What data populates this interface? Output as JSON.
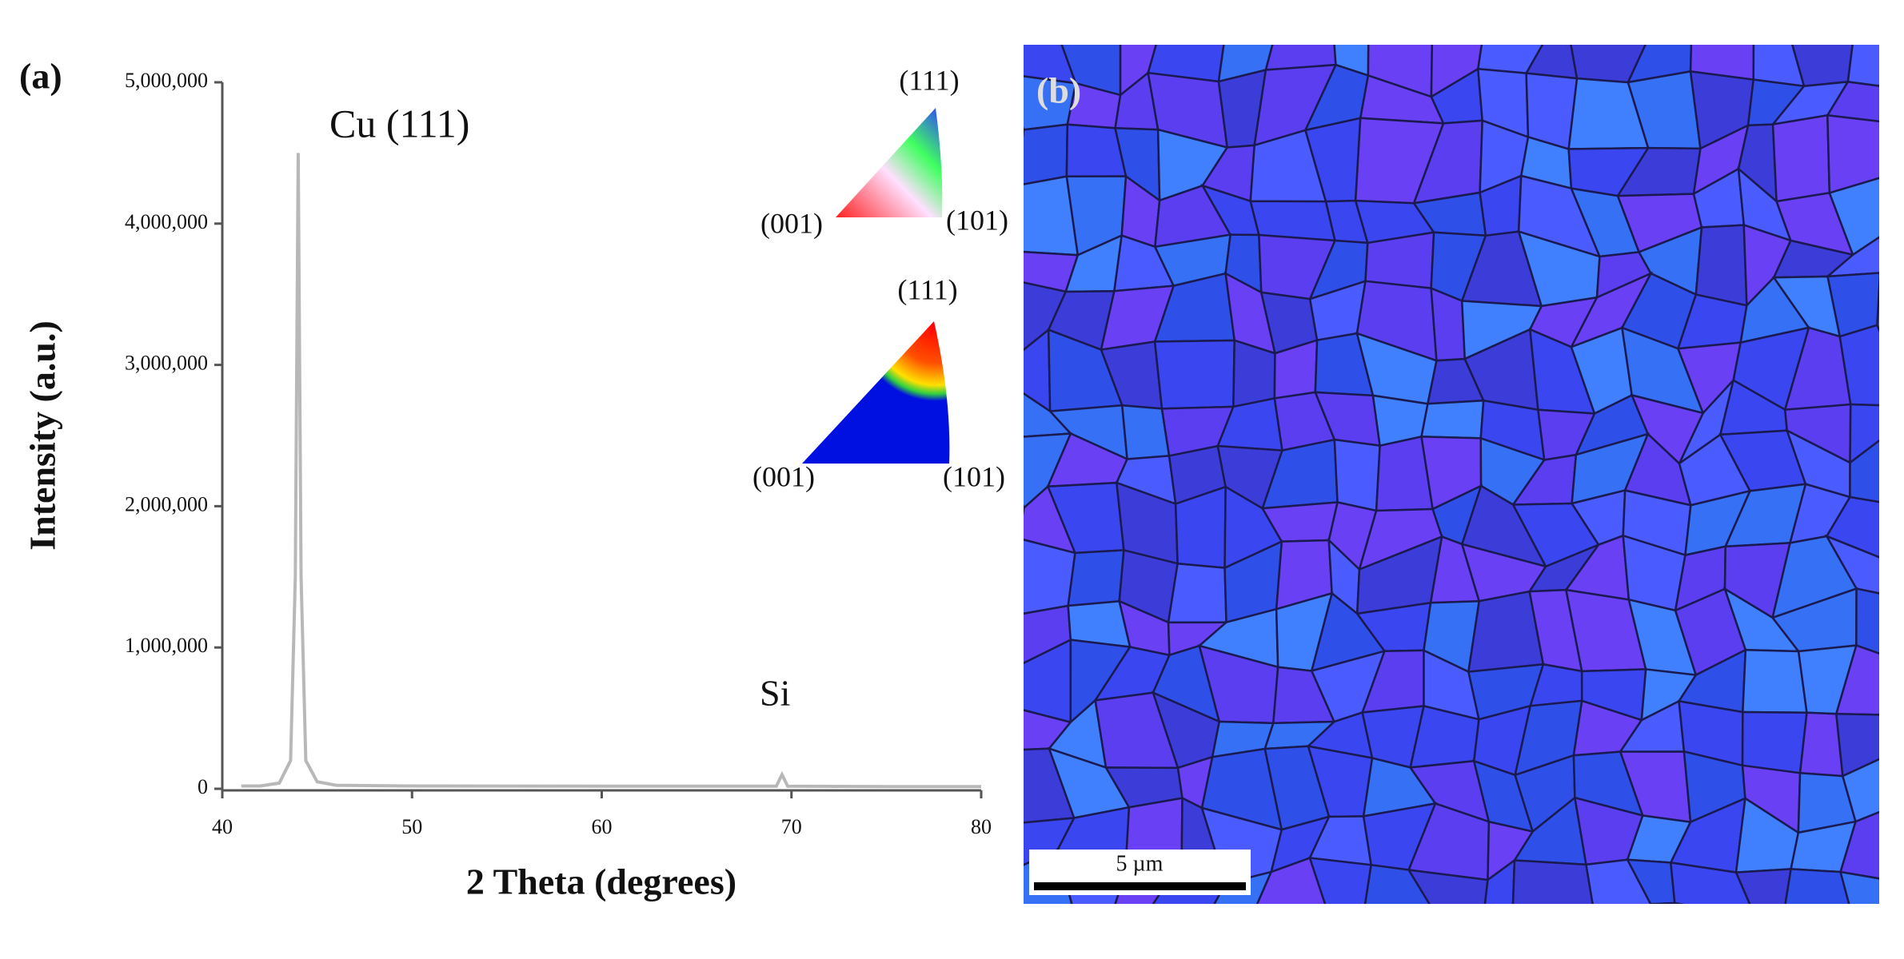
{
  "chart_data": {
    "type": "line",
    "x_label": "2 Theta (degrees)",
    "y_label": "Intensity (a.u.)",
    "x": [
      41,
      42,
      43,
      43.6,
      43.85,
      44.0,
      44.15,
      44.4,
      45,
      46,
      50,
      60,
      69.2,
      69.5,
      69.8,
      75,
      80
    ],
    "values": [
      20000,
      20000,
      40000,
      200000,
      1500000,
      4500000,
      1500000,
      200000,
      50000,
      25000,
      20000,
      18000,
      18000,
      100000,
      18000,
      15000,
      15000
    ],
    "color": "#b8b8b8",
    "xlim": [
      40,
      80
    ],
    "xticks": [
      40,
      50,
      60,
      70,
      80
    ],
    "ylim": [
      0,
      5000000
    ],
    "yticks": [
      0,
      {
        "value": 1000000,
        "label": "1,000,000"
      },
      {
        "value": 2000000,
        "label": "2,000,000"
      },
      {
        "value": 3000000,
        "label": "3,000,000"
      },
      {
        "value": 4000000,
        "label": "4,000,000"
      },
      {
        "value": 5000000,
        "label": "5,000,000"
      }
    ],
    "annotations": [
      "Cu (111)",
      "Si"
    ]
  },
  "panel_labels": [
    "(a)",
    "(b)"
  ],
  "ipf_keys": [
    [
      "(111)",
      "(001)",
      "(101)"
    ],
    [
      "(111)",
      "(001)",
      "(101)"
    ]
  ],
  "scale_bar": "5 µm"
}
